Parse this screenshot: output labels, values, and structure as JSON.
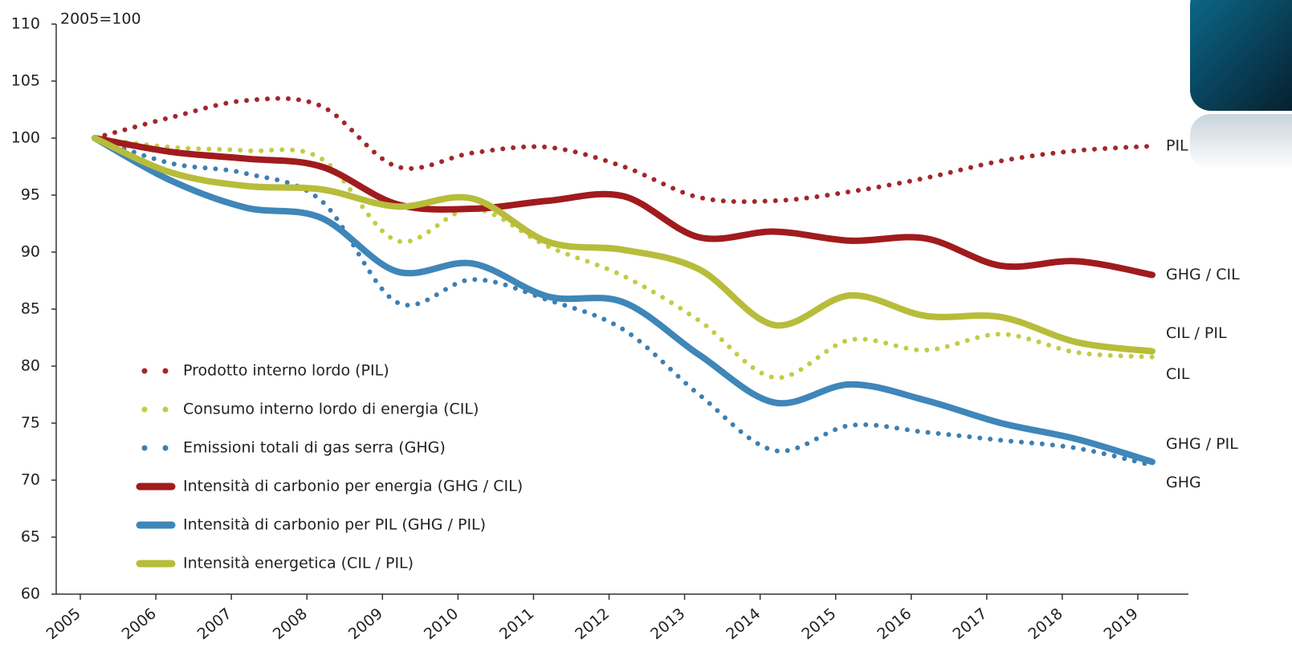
{
  "chart_data": {
    "type": "line",
    "annotation": "2005=100",
    "categories": [
      "2005",
      "2006",
      "2007",
      "2008",
      "2009",
      "2010",
      "2011",
      "2012",
      "2013",
      "2014",
      "2015",
      "2016",
      "2017",
      "2018",
      "2019"
    ],
    "ylim": [
      60,
      110
    ],
    "yticks": [
      60,
      65,
      70,
      75,
      80,
      85,
      90,
      95,
      100,
      105,
      110
    ],
    "series": [
      {
        "name": "Prodotto interno lordo (PIL)",
        "end_label": "PIL",
        "color": "#a3262a",
        "style": "dotted",
        "values": [
          100,
          101.8,
          103.3,
          102.8,
          97.5,
          98.7,
          99.2,
          97.5,
          94.8,
          94.5,
          95.3,
          96.5,
          98.0,
          98.9,
          99.3
        ]
      },
      {
        "name": "Consumo interno lordo di energia (CIL)",
        "end_label": "CIL",
        "color": "#c2cc45",
        "style": "dotted",
        "values": [
          100,
          99.2,
          98.9,
          98.2,
          91.0,
          93.8,
          90.5,
          87.9,
          84.0,
          79.0,
          82.3,
          81.4,
          82.8,
          81.2,
          80.8
        ]
      },
      {
        "name": "Emissioni totali di gas serra (GHG)",
        "end_label": "GHG",
        "color": "#3d7fb2",
        "style": "dotted",
        "values": [
          100,
          97.8,
          96.9,
          94.5,
          85.6,
          87.6,
          85.8,
          83.2,
          77.5,
          72.6,
          74.8,
          74.2,
          73.5,
          72.8,
          71.3
        ]
      },
      {
        "name": "Intensità di carbonio per energia (GHG / CIL)",
        "end_label": "GHG / CIL",
        "color": "#a01b1d",
        "style": "solid",
        "values": [
          100,
          98.8,
          98.2,
          97.5,
          94.2,
          93.8,
          94.5,
          94.9,
          91.3,
          91.8,
          91.0,
          91.2,
          88.8,
          89.2,
          88.0
        ]
      },
      {
        "name": "Intensità di carbonio per PIL (GHG / PIL)",
        "end_label": "GHG / PIL",
        "color": "#3f86b9",
        "style": "solid",
        "values": [
          100,
          96.3,
          93.9,
          93.0,
          88.3,
          89.0,
          86.1,
          85.6,
          81.0,
          76.8,
          78.4,
          77.0,
          75.0,
          73.6,
          71.6
        ]
      },
      {
        "name": "Intensità energetica (CIL / PIL)",
        "end_label": "CIL / PIL",
        "color": "#b7bd3a",
        "style": "solid",
        "values": [
          100,
          97.0,
          95.8,
          95.5,
          94.0,
          94.7,
          90.9,
          90.2,
          88.5,
          83.6,
          86.2,
          84.4,
          84.3,
          82.1,
          81.3
        ]
      }
    ]
  }
}
